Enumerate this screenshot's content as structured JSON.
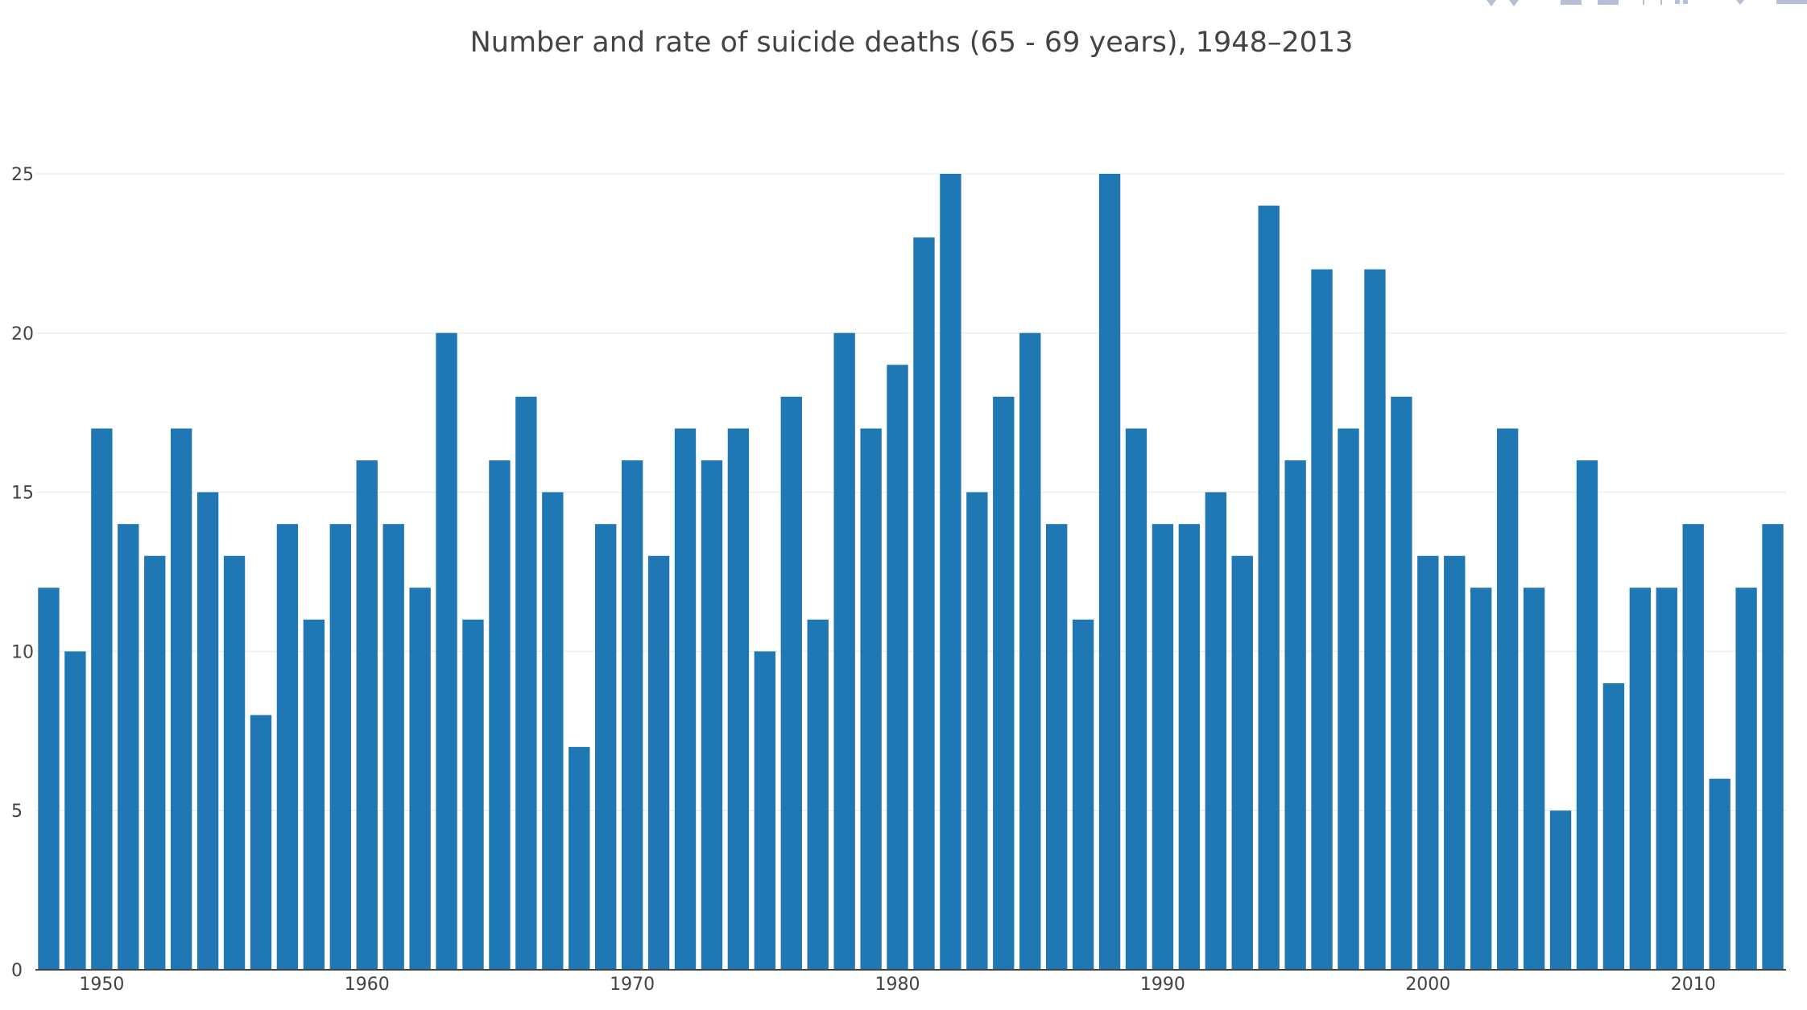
{
  "chart_data": {
    "type": "bar",
    "title": "Number and rate of suicide deaths (65 - 69 years), 1948–2013",
    "xlabel": "",
    "ylabel": "",
    "x": [
      1948,
      1949,
      1950,
      1951,
      1952,
      1953,
      1954,
      1955,
      1956,
      1957,
      1958,
      1959,
      1960,
      1961,
      1962,
      1963,
      1964,
      1965,
      1966,
      1967,
      1968,
      1969,
      1970,
      1971,
      1972,
      1973,
      1974,
      1975,
      1976,
      1977,
      1978,
      1979,
      1980,
      1981,
      1982,
      1983,
      1984,
      1985,
      1986,
      1987,
      1988,
      1989,
      1990,
      1991,
      1992,
      1993,
      1994,
      1995,
      1996,
      1997,
      1998,
      1999,
      2000,
      2001,
      2002,
      2003,
      2004,
      2005,
      2006,
      2007,
      2008,
      2009,
      2010,
      2011,
      2012,
      2013
    ],
    "values": [
      12,
      10,
      17,
      14,
      13,
      17,
      15,
      13,
      8,
      14,
      11,
      14,
      16,
      14,
      12,
      20,
      11,
      16,
      18,
      15,
      7,
      14,
      16,
      13,
      17,
      16,
      17,
      10,
      18,
      11,
      20,
      17,
      19,
      23,
      25,
      15,
      18,
      20,
      14,
      11,
      25,
      17,
      14,
      14,
      15,
      13,
      24,
      16,
      22,
      17,
      22,
      18,
      13,
      13,
      12,
      17,
      12,
      5,
      16,
      9,
      12,
      12,
      14,
      6,
      12,
      14
    ],
    "ylim": [
      0,
      25
    ],
    "y_ticks": [
      "0",
      "5",
      "10",
      "15",
      "20",
      "25"
    ],
    "x_ticks": [
      "1950",
      "1960",
      "1970",
      "1980",
      "1990",
      "2000",
      "2010"
    ],
    "grid": true,
    "bar_color": "#1f77b4"
  },
  "modebar": {
    "icons": [
      "zoom-in-icon",
      "zoom-out-icon",
      "pan-icon",
      "box-select-icon",
      "autoscale-icon",
      "reset-axes-icon",
      "compare-hover-icon",
      "plotly-logo-icon"
    ]
  }
}
